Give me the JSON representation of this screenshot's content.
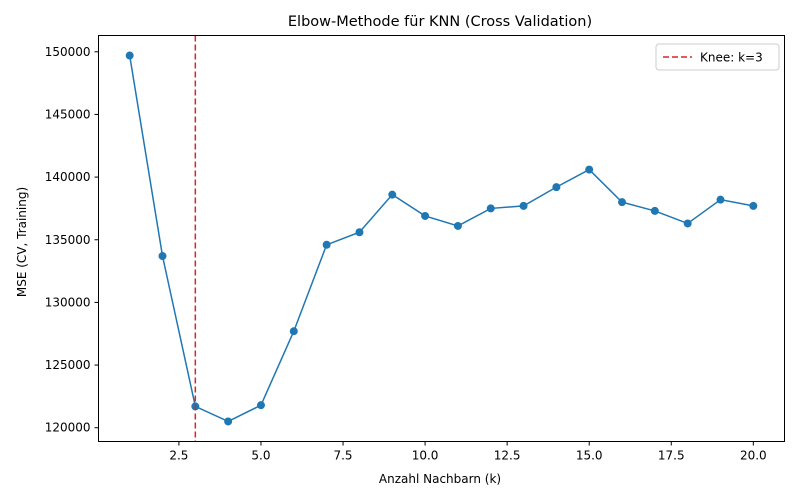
{
  "chart_data": {
    "type": "line",
    "title": "Elbow-Methode für KNN (Cross Validation)",
    "xlabel": "Anzahl Nachbarn (k)",
    "ylabel": "MSE (CV, Training)",
    "x": [
      1,
      2,
      3,
      4,
      5,
      6,
      7,
      8,
      9,
      10,
      11,
      12,
      13,
      14,
      15,
      16,
      17,
      18,
      19,
      20
    ],
    "series": [
      {
        "values": [
          149700,
          133700,
          121700,
          120500,
          121800,
          127700,
          134600,
          135600,
          138600,
          136900,
          136100,
          137500,
          137700,
          139200,
          140600,
          138000,
          137300,
          136300,
          138200,
          137700
        ],
        "color": "#1f77b4"
      }
    ],
    "xlim": [
      0.05,
      20.95
    ],
    "ylim": [
      118900,
      151300
    ],
    "xticks": [
      2.5,
      5.0,
      7.5,
      10.0,
      12.5,
      15.0,
      17.5,
      20.0
    ],
    "xtick_labels": [
      "2.5",
      "5.0",
      "7.5",
      "10.0",
      "12.5",
      "15.0",
      "17.5",
      "20.0"
    ],
    "yticks": [
      120000,
      125000,
      130000,
      135000,
      140000,
      145000,
      150000
    ],
    "ytick_labels": [
      "120000",
      "125000",
      "130000",
      "135000",
      "140000",
      "145000",
      "150000"
    ],
    "vline": {
      "x": 3,
      "label": "Knee: k=3",
      "color": "#d62728",
      "style": "dashed"
    },
    "legend": {
      "position": "top-right",
      "entries": [
        "Knee: k=3"
      ]
    },
    "grid": false
  }
}
